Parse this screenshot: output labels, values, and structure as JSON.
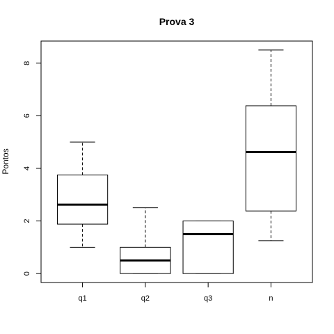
{
  "chart_data": {
    "type": "boxplot",
    "title": "Prova 3",
    "xlabel": "",
    "ylabel": "Pontos",
    "ylim": [
      -0.34,
      8.84
    ],
    "yticks": [
      0,
      2,
      4,
      6,
      8
    ],
    "grid": false,
    "categories": [
      "q1",
      "q2",
      "q3",
      "n"
    ],
    "boxes": [
      {
        "min": 1.0,
        "q1": 1.88,
        "median": 2.62,
        "q3": 3.75,
        "max": 5.0
      },
      {
        "min": 0.0,
        "q1": 0.0,
        "median": 0.5,
        "q3": 1.0,
        "max": 2.5
      },
      {
        "min": 0.0,
        "q1": 0.0,
        "median": 1.5,
        "q3": 2.0,
        "max": 2.0
      },
      {
        "min": 1.25,
        "q1": 2.38,
        "median": 4.62,
        "q3": 6.38,
        "max": 8.5
      }
    ]
  }
}
